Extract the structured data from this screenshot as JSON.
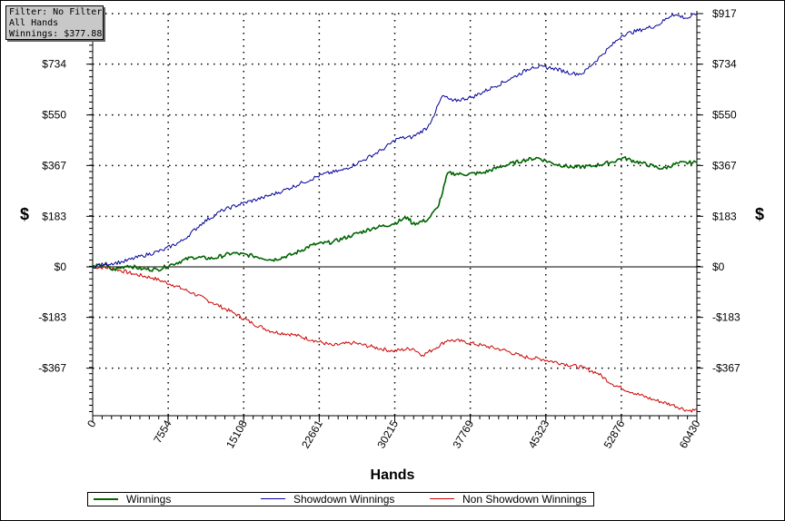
{
  "info_box": {
    "filter": "Filter: No Filter",
    "hands": "All Hands",
    "winnings": "Winnings: $377.88"
  },
  "chart_data": {
    "type": "line",
    "xlabel": "Hands",
    "ylabel": "$",
    "x_ticks": [
      0,
      7554,
      15108,
      22661,
      30215,
      37769,
      45323,
      52876,
      60430
    ],
    "y_tick_labels": [
      "$917",
      "$734",
      "$550",
      "$367",
      "$183",
      "$0",
      "-$183",
      "-$367"
    ],
    "y_tick_values": [
      917,
      734,
      550,
      367,
      183,
      0,
      -183,
      -367
    ],
    "xlim": [
      0,
      60430
    ],
    "ylim": [
      -535,
      917
    ],
    "grid": true,
    "legend_position": "bottom",
    "series": [
      {
        "name": "Winnings",
        "color": "#006400",
        "points": [
          [
            0,
            0
          ],
          [
            1200,
            8
          ],
          [
            2000,
            -12
          ],
          [
            3500,
            5
          ],
          [
            5000,
            -8
          ],
          [
            6500,
            -10
          ],
          [
            8000,
            10
          ],
          [
            10000,
            35
          ],
          [
            12000,
            30
          ],
          [
            14000,
            50
          ],
          [
            16000,
            40
          ],
          [
            18000,
            25
          ],
          [
            20000,
            45
          ],
          [
            22000,
            80
          ],
          [
            24000,
            90
          ],
          [
            26000,
            115
          ],
          [
            28000,
            140
          ],
          [
            30000,
            155
          ],
          [
            31500,
            180
          ],
          [
            32000,
            155
          ],
          [
            33500,
            170
          ],
          [
            34500,
            215
          ],
          [
            35000,
            270
          ],
          [
            35500,
            340
          ],
          [
            37000,
            335
          ],
          [
            39000,
            340
          ],
          [
            41000,
            365
          ],
          [
            43000,
            385
          ],
          [
            44500,
            395
          ],
          [
            46000,
            375
          ],
          [
            48000,
            360
          ],
          [
            50000,
            365
          ],
          [
            52000,
            380
          ],
          [
            53000,
            395
          ],
          [
            55000,
            375
          ],
          [
            57000,
            355
          ],
          [
            58500,
            375
          ],
          [
            60430,
            378
          ]
        ]
      },
      {
        "name": "Showdown Winnings",
        "color": "#00009b",
        "points": [
          [
            0,
            0
          ],
          [
            1200,
            10
          ],
          [
            3000,
            18
          ],
          [
            5000,
            40
          ],
          [
            7000,
            60
          ],
          [
            9000,
            95
          ],
          [
            11000,
            160
          ],
          [
            13000,
            205
          ],
          [
            15000,
            230
          ],
          [
            17000,
            250
          ],
          [
            19000,
            275
          ],
          [
            21000,
            305
          ],
          [
            23000,
            335
          ],
          [
            25000,
            350
          ],
          [
            27000,
            385
          ],
          [
            29000,
            425
          ],
          [
            30500,
            465
          ],
          [
            32000,
            470
          ],
          [
            33500,
            505
          ],
          [
            34000,
            540
          ],
          [
            35000,
            620
          ],
          [
            36000,
            600
          ],
          [
            38000,
            615
          ],
          [
            40000,
            650
          ],
          [
            42000,
            685
          ],
          [
            44000,
            725
          ],
          [
            46000,
            720
          ],
          [
            48000,
            700
          ],
          [
            49000,
            700
          ],
          [
            51000,
            770
          ],
          [
            53000,
            840
          ],
          [
            55000,
            860
          ],
          [
            56500,
            875
          ],
          [
            58000,
            915
          ],
          [
            59500,
            900
          ],
          [
            60430,
            917
          ]
        ]
      },
      {
        "name": "Non Showdown Winnings",
        "color": "#cc0000",
        "points": [
          [
            0,
            0
          ],
          [
            2000,
            -5
          ],
          [
            4000,
            -25
          ],
          [
            6000,
            -40
          ],
          [
            8000,
            -65
          ],
          [
            10000,
            -95
          ],
          [
            12000,
            -130
          ],
          [
            14000,
            -165
          ],
          [
            16000,
            -205
          ],
          [
            18000,
            -235
          ],
          [
            20000,
            -245
          ],
          [
            22000,
            -265
          ],
          [
            24000,
            -285
          ],
          [
            26000,
            -275
          ],
          [
            28000,
            -290
          ],
          [
            30000,
            -305
          ],
          [
            32000,
            -295
          ],
          [
            33000,
            -320
          ],
          [
            34000,
            -300
          ],
          [
            35500,
            -265
          ],
          [
            37000,
            -270
          ],
          [
            39000,
            -285
          ],
          [
            41000,
            -300
          ],
          [
            43000,
            -325
          ],
          [
            45000,
            -335
          ],
          [
            47000,
            -350
          ],
          [
            49000,
            -365
          ],
          [
            50500,
            -385
          ],
          [
            52000,
            -425
          ],
          [
            54000,
            -455
          ],
          [
            56000,
            -480
          ],
          [
            58000,
            -500
          ],
          [
            59500,
            -520
          ],
          [
            60430,
            -518
          ]
        ]
      }
    ]
  }
}
